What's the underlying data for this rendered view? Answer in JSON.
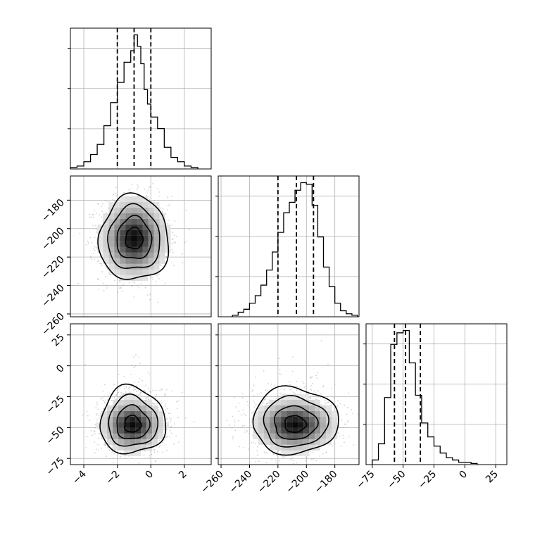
{
  "chart_data": {
    "type": "corner",
    "variables": [
      {
        "id": "p0",
        "ticks": [
          -4,
          -2,
          0,
          2
        ],
        "tick_labels": [
          "−4",
          "−2",
          "0",
          "2"
        ],
        "range": [
          -4.8,
          3.6
        ]
      },
      {
        "id": "p1",
        "ticks": [
          -260,
          -240,
          -220,
          -200,
          -180
        ],
        "tick_labels": [
          "−260",
          "−240",
          "−220",
          "−200",
          "−180"
        ],
        "range": [
          -262,
          -163
        ]
      },
      {
        "id": "p2",
        "ticks": [
          -75,
          -50,
          -25,
          0,
          25
        ],
        "tick_labels": [
          "−75",
          "−50",
          "−25",
          "0",
          "25"
        ],
        "range": [
          -80,
          34
        ]
      }
    ],
    "histograms": [
      {
        "var": "p0",
        "bin_edges": [
          -4.8,
          -4.4,
          -4.0,
          -3.6,
          -3.2,
          -2.8,
          -2.4,
          -2.0,
          -1.6,
          -1.2,
          -1.0,
          -0.8,
          -0.6,
          -0.4,
          -0.2,
          0.0,
          0.4,
          0.8,
          1.2,
          1.6,
          2.0,
          2.4,
          2.8
        ],
        "counts": [
          1,
          2,
          5,
          10,
          17,
          30,
          46,
          60,
          74,
          82,
          93,
          85,
          73,
          55,
          45,
          36,
          28,
          15,
          8,
          5,
          2,
          1
        ],
        "quantiles": [
          -2.0,
          -1.0,
          0.0
        ]
      },
      {
        "var": "p1",
        "bin_edges": [
          -252,
          -248,
          -244,
          -240,
          -236,
          -232,
          -228,
          -224,
          -220,
          -216,
          -212,
          -208,
          -204,
          -200,
          -196,
          -192,
          -188,
          -184,
          -180,
          -176,
          -172,
          -168,
          -164
        ],
        "counts": [
          1,
          3,
          5,
          9,
          14,
          21,
          31,
          43,
          56,
          69,
          76,
          84,
          89,
          88,
          74,
          53,
          33,
          20,
          9,
          4,
          2,
          1
        ],
        "quantiles": [
          -220,
          -207,
          -195
        ]
      },
      {
        "var": "p2",
        "bin_edges": [
          -75,
          -70,
          -65,
          -60,
          -55,
          -50,
          -45,
          -40,
          -35,
          -30,
          -25,
          -20,
          -15,
          -10,
          -5,
          0,
          5,
          10
        ],
        "counts": [
          2,
          9,
          29,
          52,
          57,
          58,
          44,
          30,
          18,
          12,
          8,
          5,
          3,
          2,
          1,
          1,
          0.5
        ],
        "quantiles": [
          -57,
          -48,
          -36
        ]
      }
    ],
    "joint_2d": [
      {
        "x": "p0",
        "y": "p1",
        "center": [
          -1.0,
          -207
        ],
        "sigma": [
          0.9,
          13
        ]
      },
      {
        "x": "p0",
        "y": "p2",
        "center": [
          -1.1,
          -48
        ],
        "sigma": [
          0.85,
          10
        ]
      },
      {
        "x": "p1",
        "y": "p2",
        "center": [
          -208,
          -48
        ],
        "sigma": [
          13,
          10
        ]
      }
    ],
    "contour_levels_sigma": [
      0.5,
      1.0,
      1.5,
      2.0
    ],
    "grid": true,
    "title": "",
    "xlabel": "",
    "ylabel": ""
  }
}
